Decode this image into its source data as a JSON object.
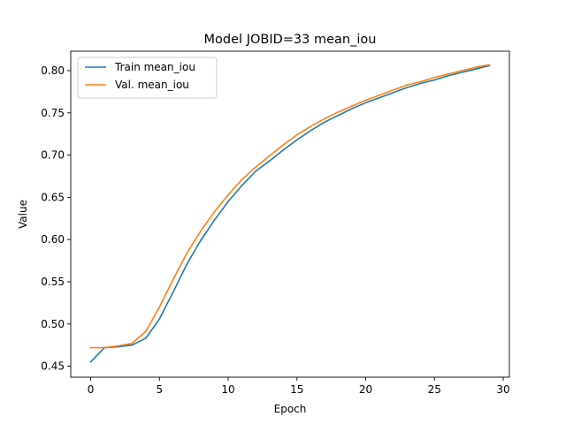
{
  "chart_data": {
    "type": "line",
    "title": "Model JOBID=33 mean_iou",
    "xlabel": "Epoch",
    "ylabel": "Value",
    "xlim": [
      -1.45,
      30.45
    ],
    "ylim": [
      0.437,
      0.823
    ],
    "xticks": [
      0,
      5,
      10,
      15,
      20,
      25,
      30
    ],
    "xtick_labels": [
      "0",
      "5",
      "10",
      "15",
      "20",
      "25",
      "30"
    ],
    "yticks": [
      0.45,
      0.5,
      0.55,
      0.6,
      0.65,
      0.7,
      0.75,
      0.8
    ],
    "ytick_labels": [
      "0.45",
      "0.50",
      "0.55",
      "0.60",
      "0.65",
      "0.70",
      "0.75",
      "0.80"
    ],
    "legend_position": "upper-left",
    "x": [
      0,
      1,
      2,
      3,
      4,
      5,
      6,
      7,
      8,
      9,
      10,
      11,
      12,
      13,
      14,
      15,
      16,
      17,
      18,
      19,
      20,
      21,
      22,
      23,
      24,
      25,
      26,
      27,
      28,
      29
    ],
    "series": [
      {
        "name": "Train mean_iou",
        "color": "#1f77b4",
        "values": [
          0.455,
          0.472,
          0.473,
          0.475,
          0.483,
          0.506,
          0.538,
          0.571,
          0.599,
          0.623,
          0.645,
          0.664,
          0.681,
          0.693,
          0.706,
          0.718,
          0.729,
          0.739,
          0.747,
          0.755,
          0.762,
          0.768,
          0.774,
          0.78,
          0.785,
          0.789,
          0.794,
          0.798,
          0.802,
          0.806
        ]
      },
      {
        "name": "Val. mean_iou",
        "color": "#ff7f0e",
        "values": [
          0.472,
          0.472,
          0.474,
          0.477,
          0.491,
          0.52,
          0.553,
          0.584,
          0.61,
          0.633,
          0.653,
          0.671,
          0.686,
          0.699,
          0.712,
          0.724,
          0.734,
          0.743,
          0.751,
          0.758,
          0.765,
          0.771,
          0.777,
          0.783,
          0.787,
          0.792,
          0.796,
          0.8,
          0.804,
          0.807
        ]
      }
    ]
  }
}
